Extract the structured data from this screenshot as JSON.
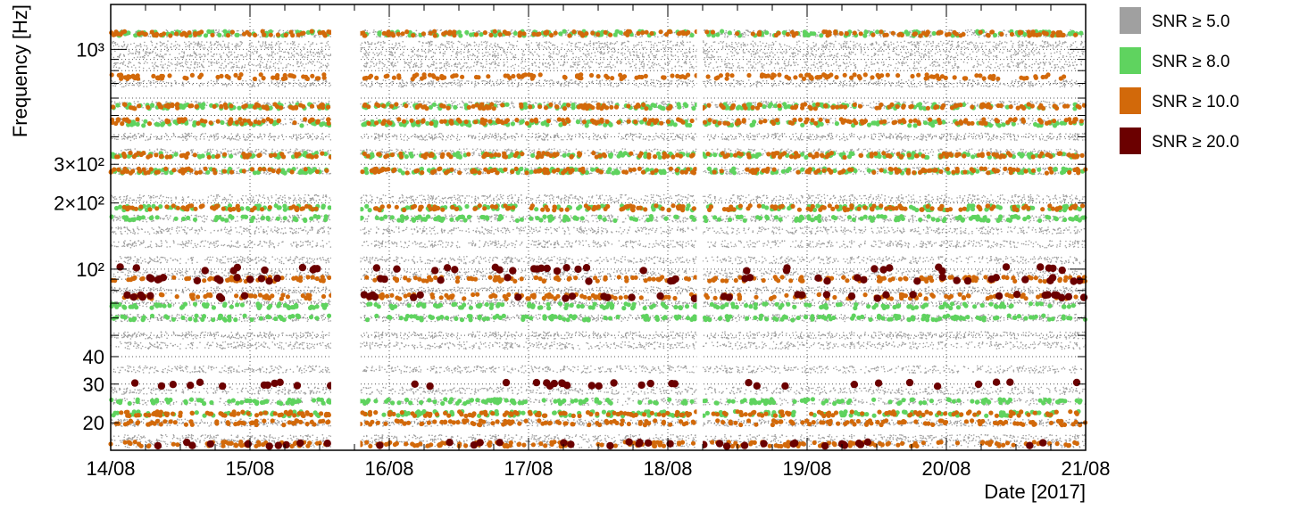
{
  "chart_data": {
    "type": "scatter",
    "xlabel": "Date [2017]",
    "ylabel": "Frequency [Hz]",
    "x_ticks": [
      "14/08",
      "15/08",
      "16/08",
      "17/08",
      "18/08",
      "19/08",
      "20/08",
      "21/08"
    ],
    "xlim": [
      "2017-08-14",
      "2017-08-21"
    ],
    "ylim": [
      15,
      1600
    ],
    "y_scale": "log",
    "y_ticks": [
      {
        "value": 20,
        "label": "20"
      },
      {
        "value": 30,
        "label": "30"
      },
      {
        "value": 40,
        "label": "40"
      },
      {
        "value": 100,
        "label": "10²"
      },
      {
        "value": 200,
        "label": "2×10²"
      },
      {
        "value": 300,
        "label": "3×10²"
      },
      {
        "value": 1000,
        "label": "10³"
      }
    ],
    "grid": true,
    "legend_position": "right",
    "data_gaps": [
      {
        "start": "2017-08-15 14:00",
        "end": "2017-08-15 19:00"
      },
      {
        "start": "2017-08-18 05:00",
        "end": "2017-08-18 06:00"
      }
    ],
    "series": [
      {
        "name": "SNR ≥ 5.0",
        "color": "#a0a0a0",
        "marker_size": "small",
        "bands_hz": [
          1180,
          1050,
          950,
          850,
          700,
          560,
          470,
          400,
          340,
          280,
          210,
          170,
          150,
          130,
          110,
          95,
          80,
          70,
          60,
          50,
          45,
          35,
          28,
          25,
          20,
          17,
          16
        ]
      },
      {
        "name": "SNR ≥ 8.0",
        "color": "#5fd35f",
        "marker_size": "medium",
        "bands_hz": [
          1180,
          550,
          460,
          330,
          280,
          190,
          170,
          68,
          60,
          25,
          22
        ]
      },
      {
        "name": "SNR ≥ 10.0",
        "color": "#d2690a",
        "marker_size": "medium",
        "bands_hz": [
          1180,
          750,
          550,
          470,
          330,
          280,
          190,
          90,
          75,
          22,
          20,
          16
        ]
      },
      {
        "name": "SNR ≥ 20.0",
        "color": "#6b0000",
        "marker_size": "large",
        "bands_hz": [
          90,
          75,
          100,
          30,
          16
        ]
      }
    ]
  }
}
